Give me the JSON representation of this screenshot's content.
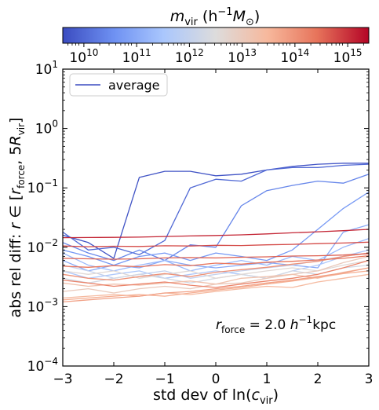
{
  "chart_data": {
    "type": "line",
    "colorbar": {
      "label_main": "m",
      "label_sub": "vir",
      "label_paren": "(h",
      "label_exp": "−1",
      "label_end": "M",
      "label_sun": "⊙",
      "label_close": ")",
      "log_range": [
        9.6,
        15.4
      ],
      "tick_exponents": [
        "10",
        "11",
        "12",
        "13",
        "14",
        "15"
      ],
      "tick_base": "10",
      "colormap": "coolwarm",
      "colors": [
        "#3b4cc0",
        "#6f92f3",
        "#aac7fd",
        "#dddcdc",
        "#f7b89c",
        "#e7745b",
        "#b40426"
      ]
    },
    "xaxis": {
      "label_pre": "std dev of ln(",
      "label_c": "c",
      "label_sub": "vir",
      "label_post": ")",
      "lim": [
        -3,
        3
      ],
      "ticks": [
        "−3",
        "−2",
        "−1",
        "0",
        "1",
        "2",
        "3"
      ]
    },
    "yaxis": {
      "scale": "log",
      "label_text": "abs rel diff: ",
      "label_r": "r",
      "label_in": " ∈ [",
      "label_r2": "r",
      "label_force": "force",
      "label_comma": ", 5",
      "label_R": "R",
      "label_vir": "vir",
      "label_close": "]",
      "lim": [
        0.0001,
        10
      ],
      "tick_base": "10",
      "tick_exponents": [
        "−4",
        "−3",
        "−2",
        "−1",
        "0",
        "1"
      ]
    },
    "legend": {
      "label": "average",
      "placement": "top-left"
    },
    "annotation": {
      "r": "r",
      "sub": "force",
      "eq": " = 2.0 ",
      "h": "h",
      "exp": "−1",
      "unit": "kpc"
    },
    "x": [
      -3.0,
      -2.5,
      -2.0,
      -1.5,
      -1.0,
      -0.5,
      0.0,
      0.5,
      1.0,
      1.5,
      2.0,
      2.5,
      3.0
    ],
    "series": [
      {
        "log_mass": 9.7,
        "values": [
          0.016,
          0.012,
          0.0065,
          0.15,
          0.19,
          0.19,
          0.16,
          0.17,
          0.2,
          0.23,
          0.25,
          0.26,
          0.26
        ]
      },
      {
        "log_mass": 10.0,
        "values": [
          0.018,
          0.009,
          0.01,
          0.0075,
          0.013,
          0.1,
          0.14,
          0.13,
          0.2,
          0.22,
          0.22,
          0.24,
          0.25
        ]
      },
      {
        "log_mass": 10.4,
        "values": [
          0.012,
          0.008,
          0.006,
          0.009,
          0.006,
          0.011,
          0.01,
          0.05,
          0.09,
          0.11,
          0.13,
          0.12,
          0.17
        ]
      },
      {
        "log_mass": 10.7,
        "values": [
          0.009,
          0.007,
          0.005,
          0.007,
          0.008,
          0.006,
          0.008,
          0.007,
          0.006,
          0.009,
          0.02,
          0.045,
          0.085
        ]
      },
      {
        "log_mass": 11.0,
        "values": [
          0.006,
          0.004,
          0.005,
          0.0045,
          0.006,
          0.005,
          0.0045,
          0.005,
          0.0055,
          0.005,
          0.0045,
          0.018,
          0.024
        ]
      },
      {
        "log_mass": 11.3,
        "values": [
          0.008,
          0.005,
          0.004,
          0.005,
          0.006,
          0.004,
          0.005,
          0.006,
          0.005,
          0.007,
          0.006,
          0.01,
          0.014
        ]
      },
      {
        "log_mass": 11.6,
        "values": [
          0.004,
          0.003,
          0.0035,
          0.004,
          0.003,
          0.0035,
          0.004,
          0.0035,
          0.003,
          0.004,
          0.005,
          0.007,
          0.009
        ]
      },
      {
        "log_mass": 12.0,
        "values": [
          0.005,
          0.004,
          0.003,
          0.0035,
          0.004,
          0.003,
          0.0035,
          0.004,
          0.0045,
          0.005,
          0.006,
          0.007,
          0.008
        ]
      },
      {
        "log_mass": 12.3,
        "values": [
          0.003,
          0.0025,
          0.003,
          0.0035,
          0.003,
          0.0025,
          0.003,
          0.0035,
          0.003,
          0.004,
          0.0035,
          0.0045,
          0.005
        ]
      },
      {
        "log_mass": 12.6,
        "values": [
          0.004,
          0.0035,
          0.004,
          0.003,
          0.0035,
          0.004,
          0.003,
          0.0035,
          0.004,
          0.0045,
          0.004,
          0.005,
          0.006
        ]
      },
      {
        "log_mass": 13.0,
        "values": [
          0.0018,
          0.002,
          0.0017,
          0.002,
          0.0022,
          0.002,
          0.0024,
          0.0025,
          0.003,
          0.0035,
          0.004,
          0.0055,
          0.007
        ]
      },
      {
        "log_mass": 13.2,
        "values": [
          0.0025,
          0.0022,
          0.0024,
          0.0023,
          0.0025,
          0.0027,
          0.0024,
          0.003,
          0.0032,
          0.0035,
          0.003,
          0.0038,
          0.0045
        ]
      },
      {
        "log_mass": 13.4,
        "values": [
          0.0014,
          0.0015,
          0.0016,
          0.0015,
          0.0017,
          0.0016,
          0.0018,
          0.002,
          0.0022,
          0.0021,
          0.0026,
          0.003,
          0.0035
        ]
      },
      {
        "log_mass": 13.6,
        "values": [
          0.0013,
          0.0014,
          0.0015,
          0.0016,
          0.0015,
          0.0017,
          0.0019,
          0.0021,
          0.0024,
          0.0027,
          0.0031,
          0.0036,
          0.004
        ]
      },
      {
        "log_mass": 13.8,
        "values": [
          0.0012,
          0.0013,
          0.0014,
          0.0015,
          0.0017,
          0.0018,
          0.002,
          0.0022,
          0.0025,
          0.0028,
          0.0032,
          0.0037,
          0.0045
        ]
      },
      {
        "log_mass": 14.0,
        "values": [
          0.0035,
          0.003,
          0.0028,
          0.0032,
          0.0036,
          0.0032,
          0.0038,
          0.0042,
          0.0046,
          0.0052,
          0.0058,
          0.007,
          0.008
        ]
      },
      {
        "log_mass": 14.2,
        "values": [
          0.0028,
          0.0025,
          0.0022,
          0.0024,
          0.0026,
          0.0023,
          0.0021,
          0.0024,
          0.0027,
          0.003,
          0.0035,
          0.0045,
          0.006
        ]
      },
      {
        "log_mass": 14.4,
        "values": [
          0.0048,
          0.0046,
          0.0049,
          0.0047,
          0.0051,
          0.0049,
          0.0054,
          0.0052,
          0.0056,
          0.0058,
          0.0061,
          0.0065,
          0.0072
        ]
      },
      {
        "log_mass": 14.6,
        "values": [
          0.0065,
          0.0064,
          0.0063,
          0.0064,
          0.0066,
          0.0067,
          0.0066,
          0.0068,
          0.0069,
          0.0071,
          0.0072,
          0.0074,
          0.0078
        ]
      },
      {
        "log_mass": 14.8,
        "values": [
          0.0105,
          0.0102,
          0.0104,
          0.0103,
          0.0106,
          0.0105,
          0.0108,
          0.0107,
          0.011,
          0.0112,
          0.0115,
          0.0118,
          0.0122
        ]
      },
      {
        "log_mass": 15.1,
        "values": [
          0.0145,
          0.0146,
          0.0147,
          0.0148,
          0.0152,
          0.0155,
          0.0158,
          0.0162,
          0.0168,
          0.0175,
          0.0182,
          0.019,
          0.02
        ]
      }
    ]
  }
}
